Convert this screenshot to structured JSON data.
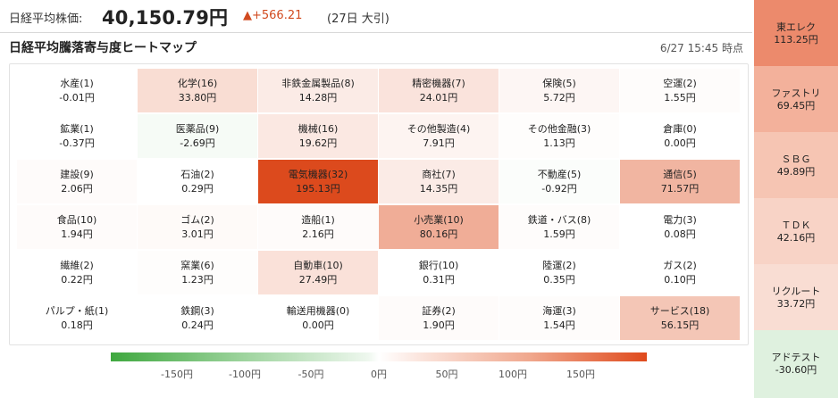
{
  "header": {
    "index_label": "日経平均株価:",
    "index_value": "40,150.79円",
    "change": "▲+566.21",
    "session": "(27日 大引)"
  },
  "heatmap": {
    "title": "日経平均騰落寄与度ヒートマップ",
    "timestamp": "6/27 15:45 時点",
    "cells": [
      {
        "name": "水産(1)",
        "value": "-0.01円",
        "color": "#ffffff"
      },
      {
        "name": "化学(16)",
        "value": "33.80円",
        "color": "#f9ddd3"
      },
      {
        "name": "非鉄金属製品(8)",
        "value": "14.28円",
        "color": "#fbebe6"
      },
      {
        "name": "精密機器(7)",
        "value": "24.01円",
        "color": "#fae3dc"
      },
      {
        "name": "保険(5)",
        "value": "5.72円",
        "color": "#fdf6f4"
      },
      {
        "name": "空運(2)",
        "value": "1.55円",
        "color": "#fefcfb"
      },
      {
        "name": "鉱業(1)",
        "value": "-0.37円",
        "color": "#ffffff"
      },
      {
        "name": "医薬品(9)",
        "value": "-2.69円",
        "color": "#f6fbf6"
      },
      {
        "name": "機械(16)",
        "value": "19.62円",
        "color": "#fbe8e2"
      },
      {
        "name": "その他製造(4)",
        "value": "7.91円",
        "color": "#fdf4f1"
      },
      {
        "name": "その他金融(3)",
        "value": "1.13円",
        "color": "#fefdfc"
      },
      {
        "name": "倉庫(0)",
        "value": "0.00円",
        "color": "#ffffff"
      },
      {
        "name": "建設(9)",
        "value": "2.06円",
        "color": "#fefbfa"
      },
      {
        "name": "石油(2)",
        "value": "0.29円",
        "color": "#ffffff"
      },
      {
        "name": "電気機器(32)",
        "value": "195.13円",
        "color": "#dc4a1d"
      },
      {
        "name": "商社(7)",
        "value": "14.35円",
        "color": "#fbebe6"
      },
      {
        "name": "不動産(5)",
        "value": "-0.92円",
        "color": "#fbfdfb"
      },
      {
        "name": "通信(5)",
        "value": "71.57円",
        "color": "#f1b5a1"
      },
      {
        "name": "食品(10)",
        "value": "1.94円",
        "color": "#fefbfa"
      },
      {
        "name": "ゴム(2)",
        "value": "3.01円",
        "color": "#fefaf8"
      },
      {
        "name": "造船(1)",
        "value": "2.16円",
        "color": "#fefbfa"
      },
      {
        "name": "小売業(10)",
        "value": "80.16円",
        "color": "#f0ad97"
      },
      {
        "name": "鉄道・バス(8)",
        "value": "1.59円",
        "color": "#fefcfb"
      },
      {
        "name": "電力(3)",
        "value": "0.08円",
        "color": "#ffffff"
      },
      {
        "name": "繊維(2)",
        "value": "0.22円",
        "color": "#ffffff"
      },
      {
        "name": "窯業(6)",
        "value": "1.23円",
        "color": "#fefdfc"
      },
      {
        "name": "自動車(10)",
        "value": "27.49円",
        "color": "#fae1d9"
      },
      {
        "name": "銀行(10)",
        "value": "0.31円",
        "color": "#ffffff"
      },
      {
        "name": "陸運(2)",
        "value": "0.35円",
        "color": "#ffffff"
      },
      {
        "name": "ガス(2)",
        "value": "0.10円",
        "color": "#ffffff"
      },
      {
        "name": "パルプ・紙(1)",
        "value": "0.18円",
        "color": "#ffffff"
      },
      {
        "name": "鉄鋼(3)",
        "value": "0.24円",
        "color": "#ffffff"
      },
      {
        "name": "輸送用機器(0)",
        "value": "0.00円",
        "color": "#ffffff"
      },
      {
        "name": "証券(2)",
        "value": "1.90円",
        "color": "#fefbfa"
      },
      {
        "name": "海運(3)",
        "value": "1.54円",
        "color": "#fefcfb"
      },
      {
        "name": "サービス(18)",
        "value": "56.15円",
        "color": "#f4c6b6"
      }
    ]
  },
  "legend": {
    "ticks": [
      "-150円",
      "-100円",
      "-50円",
      "0円",
      "50円",
      "100円",
      "150円"
    ],
    "colors": {
      "negative": "#3fa83f",
      "neutral": "#ffffff",
      "positive": "#df4a1c"
    }
  },
  "contributors": [
    {
      "name": "東エレク",
      "value": "113.25円",
      "color": "#ec8a6c"
    },
    {
      "name": "ファストリ",
      "value": "69.45円",
      "color": "#f3b19b"
    },
    {
      "name": "ＳＢＧ",
      "value": "49.89円",
      "color": "#f6c5b3"
    },
    {
      "name": "ＴＤＫ",
      "value": "42.16円",
      "color": "#f8d3c6"
    },
    {
      "name": "リクルート",
      "value": "33.72円",
      "color": "#f9ddd3"
    },
    {
      "name": "アドテスト",
      "value": "-30.60円",
      "color": "#dff1df"
    }
  ]
}
